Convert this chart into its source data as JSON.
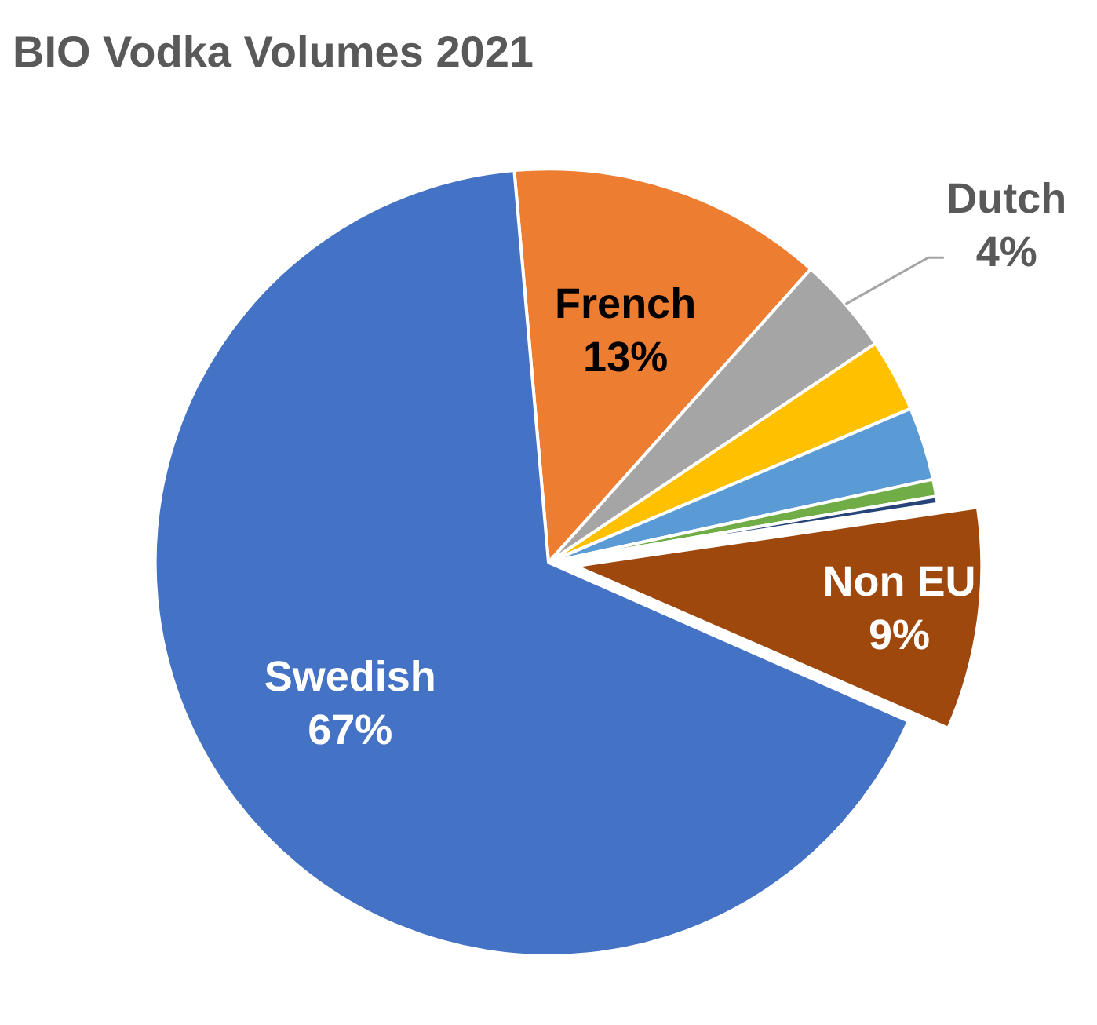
{
  "chart_data": {
    "type": "pie",
    "title": "BIO Vodka Volumes 2021",
    "categories": [
      "French",
      "Dutch",
      null,
      null,
      null,
      null,
      "Non EU",
      "Swedish"
    ],
    "values": [
      13,
      4,
      3,
      3,
      0.7,
      0.3,
      9,
      67
    ],
    "colors": [
      "#ed7d31",
      "#a5a5a5",
      "#ffc000",
      "#5b9bd5",
      "#70ad47",
      "#264478",
      "#9e480e",
      "#4472c4"
    ],
    "value_labels": [
      "13%",
      "4%",
      null,
      null,
      null,
      null,
      "9%",
      "67%"
    ],
    "legend": false
  }
}
